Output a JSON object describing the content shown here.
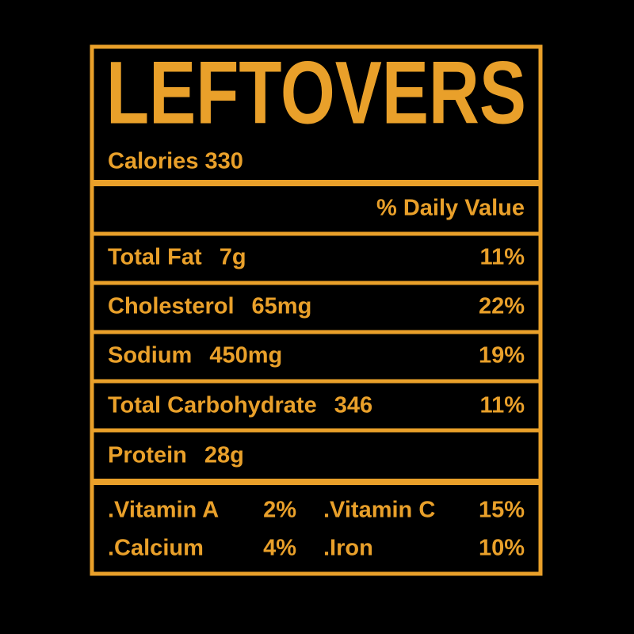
{
  "title": "LEFTOVERS",
  "calories": "Calories 330",
  "daily_value_header": "% Daily Value",
  "rows": [
    {
      "label": "Total Fat",
      "amount": "7g",
      "percent": "11%"
    },
    {
      "label": "Cholesterol",
      "amount": "65mg",
      "percent": "22%"
    },
    {
      "label": "Sodium",
      "amount": "450mg",
      "percent": "19%"
    },
    {
      "label": "Total Carbohydrate",
      "amount": "346",
      "percent": "11%"
    },
    {
      "label": "Protein",
      "amount": "28g"
    }
  ],
  "vitamins": [
    {
      "name": ".Vitamin A",
      "percent": "2%"
    },
    {
      "name": ".Vitamin C",
      "percent": "15%"
    },
    {
      "name": ".Calcium",
      "percent": "4%"
    },
    {
      "name": ".Iron",
      "percent": "10%"
    }
  ]
}
